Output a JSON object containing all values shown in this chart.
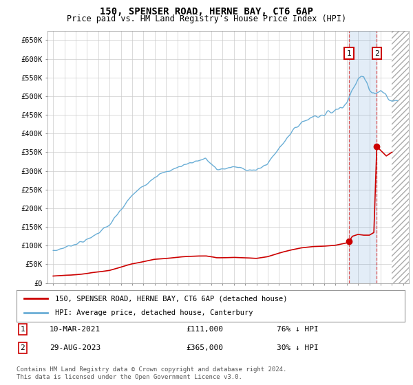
{
  "title": "150, SPENSER ROAD, HERNE BAY, CT6 6AP",
  "subtitle": "Price paid vs. HM Land Registry's House Price Index (HPI)",
  "ylabel_ticks": [
    "£0",
    "£50K",
    "£100K",
    "£150K",
    "£200K",
    "£250K",
    "£300K",
    "£350K",
    "£400K",
    "£450K",
    "£500K",
    "£550K",
    "£600K",
    "£650K"
  ],
  "ytick_values": [
    0,
    50000,
    100000,
    150000,
    200000,
    250000,
    300000,
    350000,
    400000,
    450000,
    500000,
    550000,
    600000,
    650000
  ],
  "xlim_start": 1994.5,
  "xlim_end": 2026.5,
  "ylim_min": 0,
  "ylim_max": 675000,
  "hpi_color": "#6aaed6",
  "price_color": "#cc0000",
  "marker1_date": 2021.19,
  "marker1_price": 111000,
  "marker2_date": 2023.66,
  "marker2_price": 365000,
  "legend_line1": "150, SPENSER ROAD, HERNE BAY, CT6 6AP (detached house)",
  "legend_line2": "HPI: Average price, detached house, Canterbury",
  "footnote": "Contains HM Land Registry data © Crown copyright and database right 2024.\nThis data is licensed under the Open Government Licence v3.0.",
  "background_color": "#ffffff",
  "grid_color": "#cccccc"
}
